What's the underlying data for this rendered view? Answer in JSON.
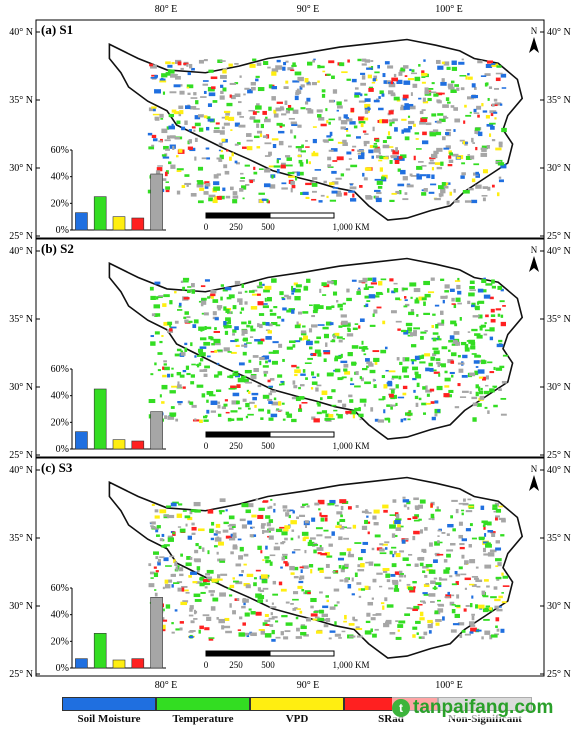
{
  "colors": {
    "soil_moisture": "#1f6fe0",
    "temperature": "#33dd22",
    "vpd": "#ffee11",
    "srad": "#ff2020",
    "non_significant": "#a6a6a6"
  },
  "axes": {
    "top_lon_labels": [
      "80° E",
      "90° E",
      "100° E"
    ],
    "lat_labels": [
      "40° N",
      "35° N",
      "30° N",
      "25° N"
    ]
  },
  "scale_bar": {
    "ticks": [
      "0",
      "250",
      "500",
      "1,000 KM"
    ]
  },
  "north_arrow": "N",
  "panels": [
    {
      "title": "(a) S1",
      "bottom_lon_labels": []
    },
    {
      "title": "(b) S2",
      "bottom_lon_labels": []
    },
    {
      "title": "(c) S3",
      "bottom_lon_labels": [
        "80° E",
        "90° E",
        "100° E"
      ]
    }
  ],
  "legend": [
    "Soil Moisture",
    "Temperature",
    "VPD",
    "SRad",
    "Non-Significant"
  ],
  "watermark": "tanpaifang.com",
  "chart_data": [
    {
      "type": "bar",
      "title": "(a) S1",
      "categories": [
        "Soil Moisture",
        "Temperature",
        "VPD",
        "SRad",
        "Non-Significant"
      ],
      "values": [
        13,
        25,
        10,
        9,
        42
      ],
      "yticks": [
        "0%",
        "20%",
        "40%",
        "60%"
      ],
      "ylim": [
        0,
        60
      ]
    },
    {
      "type": "bar",
      "title": "(b) S2",
      "categories": [
        "Soil Moisture",
        "Temperature",
        "VPD",
        "SRad",
        "Non-Significant"
      ],
      "values": [
        13,
        45,
        7,
        6,
        28
      ],
      "yticks": [
        "0%",
        "20%",
        "40%",
        "60%"
      ],
      "ylim": [
        0,
        60
      ]
    },
    {
      "type": "bar",
      "title": "(c) S3",
      "categories": [
        "Soil Moisture",
        "Temperature",
        "VPD",
        "SRad",
        "Non-Significant"
      ],
      "values": [
        7,
        26,
        6,
        7,
        53
      ],
      "yticks": [
        "0%",
        "20%",
        "40%",
        "60%"
      ],
      "ylim": [
        0,
        60
      ]
    }
  ]
}
